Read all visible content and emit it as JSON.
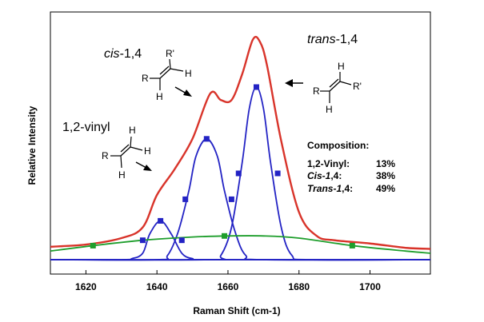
{
  "chart_data": {
    "type": "line",
    "xlabel": "Raman Shift (cm-1)",
    "ylabel": "Relative Intensity",
    "xlim": [
      1610,
      1717
    ],
    "xticks": [
      1620,
      1640,
      1660,
      1680,
      1700
    ],
    "ylim": [
      0,
      1.1
    ],
    "grid": false,
    "legend": "none",
    "series": [
      {
        "color": "#d9342a",
        "values": [
          [
            1610,
            0.06
          ],
          [
            1620,
            0.07
          ],
          [
            1630,
            0.1
          ],
          [
            1636,
            0.15
          ],
          [
            1640,
            0.3
          ],
          [
            1645,
            0.42
          ],
          [
            1650,
            0.56
          ],
          [
            1655,
            0.77
          ],
          [
            1658,
            0.74
          ],
          [
            1661,
            0.74
          ],
          [
            1664,
            0.86
          ],
          [
            1667,
            1.02
          ],
          [
            1669,
            1.01
          ],
          [
            1671,
            0.9
          ],
          [
            1675,
            0.55
          ],
          [
            1680,
            0.22
          ],
          [
            1685,
            0.11
          ],
          [
            1690,
            0.09
          ],
          [
            1700,
            0.075
          ],
          [
            1710,
            0.055
          ],
          [
            1717,
            0.05
          ]
        ]
      },
      {
        "color": "#1a1a6e",
        "values": [
          [
            1610,
            0.06
          ],
          [
            1620,
            0.07
          ],
          [
            1630,
            0.1
          ],
          [
            1636,
            0.15
          ],
          [
            1640,
            0.3
          ],
          [
            1645,
            0.42
          ],
          [
            1650,
            0.56
          ],
          [
            1655,
            0.77
          ],
          [
            1658,
            0.74
          ],
          [
            1661,
            0.74
          ],
          [
            1664,
            0.86
          ],
          [
            1667,
            1.02
          ],
          [
            1669,
            1.01
          ],
          [
            1671,
            0.9
          ],
          [
            1675,
            0.55
          ],
          [
            1680,
            0.22
          ],
          [
            1685,
            0.11
          ],
          [
            1690,
            0.09
          ],
          [
            1700,
            0.075
          ],
          [
            1710,
            0.055
          ],
          [
            1717,
            0.05
          ]
        ]
      },
      {
        "color": "#1e9e2c",
        "values": [
          [
            1610,
            0.04
          ],
          [
            1622,
            0.065
          ],
          [
            1636,
            0.09
          ],
          [
            1650,
            0.105
          ],
          [
            1660,
            0.11
          ],
          [
            1670,
            0.11
          ],
          [
            1680,
            0.1
          ],
          [
            1695,
            0.065
          ],
          [
            1710,
            0.04
          ],
          [
            1717,
            0.03
          ]
        ],
        "markers": [
          [
            1622,
            0.065
          ],
          [
            1659,
            0.11
          ],
          [
            1695,
            0.065
          ]
        ]
      },
      {
        "color": "#2323c4",
        "values": [
          [
            1610,
            0
          ],
          [
            1630,
            0
          ],
          [
            1633,
            0.005
          ],
          [
            1636,
            0.03
          ],
          [
            1638,
            0.12
          ],
          [
            1641,
            0.18
          ],
          [
            1644,
            0.12
          ],
          [
            1647,
            0.03
          ],
          [
            1650,
            0.005
          ],
          [
            1655,
            0
          ],
          [
            1717,
            0
          ]
        ],
        "markers": [
          [
            1636,
            0.09
          ],
          [
            1641,
            0.18
          ],
          [
            1647,
            0.09
          ]
        ]
      },
      {
        "color": "#2323c4",
        "values": [
          [
            1610,
            0
          ],
          [
            1640,
            0
          ],
          [
            1643,
            0.02
          ],
          [
            1646,
            0.13
          ],
          [
            1649,
            0.32
          ],
          [
            1651,
            0.48
          ],
          [
            1654,
            0.56
          ],
          [
            1657,
            0.48
          ],
          [
            1659,
            0.32
          ],
          [
            1662,
            0.13
          ],
          [
            1665,
            0.02
          ],
          [
            1670,
            0
          ],
          [
            1717,
            0
          ]
        ],
        "markers": [
          [
            1648,
            0.28
          ],
          [
            1654,
            0.56
          ],
          [
            1661,
            0.28
          ]
        ]
      },
      {
        "color": "#2323c4",
        "values": [
          [
            1610,
            0
          ],
          [
            1655,
            0
          ],
          [
            1658,
            0.02
          ],
          [
            1661,
            0.15
          ],
          [
            1664,
            0.45
          ],
          [
            1666,
            0.7
          ],
          [
            1668,
            0.8
          ],
          [
            1670,
            0.7
          ],
          [
            1672,
            0.45
          ],
          [
            1675,
            0.15
          ],
          [
            1678,
            0.02
          ],
          [
            1683,
            0
          ],
          [
            1717,
            0
          ]
        ],
        "markers": [
          [
            1663,
            0.4
          ],
          [
            1668,
            0.8
          ],
          [
            1674,
            0.4
          ]
        ]
      }
    ],
    "annotations": {
      "vinyl": "1,2-vinyl",
      "cis": "cis",
      "cis_rest": "-1,4",
      "trans": "trans",
      "trans_rest": "-1,4",
      "r": "R",
      "r_prime": "R'",
      "h": "H"
    },
    "composition": {
      "title": "Composition:",
      "rows": [
        {
          "label": "1,2-Vinyl:",
          "italic": "",
          "value": "13%"
        },
        {
          "label": ",4:",
          "italic": "Cis-1",
          "value": "38%"
        },
        {
          "label": ",4:",
          "italic": "Trans-1",
          "value": "49%"
        }
      ]
    }
  }
}
